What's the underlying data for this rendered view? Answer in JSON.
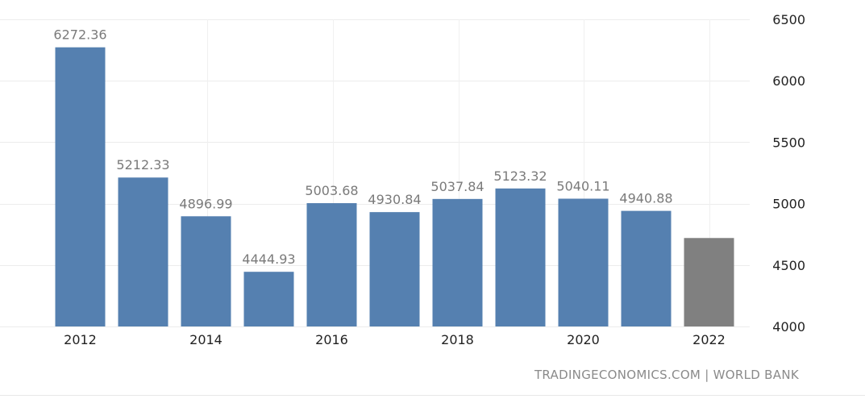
{
  "chart_data": {
    "type": "bar",
    "categories": [
      "2012",
      "2013",
      "2014",
      "2015",
      "2016",
      "2017",
      "2018",
      "2019",
      "2020",
      "2021",
      "2022"
    ],
    "values": [
      6272.36,
      5212.33,
      4896.99,
      4444.93,
      5003.68,
      4930.84,
      5037.84,
      5123.32,
      5040.11,
      4940.88,
      4720
    ],
    "data_labels": [
      "6272.36",
      "5212.33",
      "4896.99",
      "4444.93",
      "5003.68",
      "4930.84",
      "5037.84",
      "5123.32",
      "5040.11",
      "4940.88",
      ""
    ],
    "x_tick_labels": [
      "2012",
      "",
      "2014",
      "",
      "2016",
      "",
      "2018",
      "",
      "2020",
      "",
      "2022"
    ],
    "y_ticks": [
      4000,
      4500,
      5000,
      5500,
      6000,
      6500
    ],
    "ylim": [
      4000,
      6500
    ],
    "title": "",
    "xlabel": "",
    "ylabel": "",
    "y_axis_position": "right",
    "grid": true,
    "colors": {
      "actual": "#5580b0",
      "forecast": "#808080"
    },
    "forecast_index": 10
  },
  "source_text": "TRADINGECONOMICS.COM | WORLD BANK"
}
